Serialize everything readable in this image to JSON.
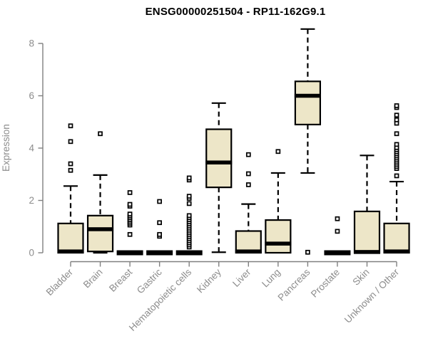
{
  "chart_data": {
    "type": "boxplot",
    "title": "ENSG00000251504 - RP11-162G9.1",
    "ylabel": "Expression",
    "xlabel": "",
    "yticks": [
      0,
      2,
      4,
      6,
      8
    ],
    "ylim": [
      0,
      8.6
    ],
    "grid": false,
    "legend": "none",
    "colors": {
      "box_fill": "#EDE6C8",
      "box_stroke": "#000000",
      "axis_line": "#808080",
      "tick_text": "#8C8C8C",
      "title_text": "#000000",
      "background": "#FFFFFF"
    },
    "categories": [
      "Bladder",
      "Brain",
      "Breast",
      "Gastric",
      "Hematopoietic cells",
      "Kidney",
      "Liver",
      "Lung",
      "Pancreas",
      "Prostate",
      "Skin",
      "Unknown / Other"
    ],
    "series": [
      {
        "category": "Bladder",
        "q1": 0,
        "median": 0.05,
        "q3": 1.12,
        "whisker_low": 0,
        "whisker_high": 2.55,
        "outliers": [
          3.15,
          3.4,
          4.25,
          4.85
        ]
      },
      {
        "category": "Brain",
        "q1": 0.05,
        "median": 0.9,
        "q3": 1.42,
        "whisker_low": 0,
        "whisker_high": 2.97,
        "outliers": [
          4.55
        ]
      },
      {
        "category": "Breast",
        "q1": 0,
        "median": 0,
        "q3": 0,
        "whisker_low": 0,
        "whisker_high": 0,
        "outliers": [
          0.7,
          1.06,
          1.13,
          1.2,
          1.27,
          1.34,
          1.41,
          1.48,
          1.78,
          1.85,
          2.3
        ]
      },
      {
        "category": "Gastric",
        "q1": 0,
        "median": 0,
        "q3": 0,
        "whisker_low": 0,
        "whisker_high": 0,
        "outliers": [
          0.63,
          0.7,
          1.15,
          1.96
        ]
      },
      {
        "category": "Hematopoietic cells",
        "q1": 0,
        "median": 0,
        "q3": 0,
        "whisker_low": 0,
        "whisker_high": 0,
        "outliers": [
          0.22,
          0.3,
          0.38,
          0.46,
          0.54,
          0.62,
          0.7,
          0.78,
          0.86,
          0.94,
          1.02,
          1.1,
          1.18,
          1.26,
          1.34,
          1.42,
          1.88,
          2.08,
          2.16,
          2.78,
          2.86
        ]
      },
      {
        "category": "Kidney",
        "q1": 2.5,
        "median": 3.45,
        "q3": 4.72,
        "whisker_low": 0.02,
        "whisker_high": 5.72,
        "outliers": []
      },
      {
        "category": "Liver",
        "q1": 0,
        "median": 0.05,
        "q3": 0.83,
        "whisker_low": 0,
        "whisker_high": 1.86,
        "outliers": [
          2.6,
          3.02,
          3.75
        ]
      },
      {
        "category": "Lung",
        "q1": 0,
        "median": 0.35,
        "q3": 1.25,
        "whisker_low": 0,
        "whisker_high": 3.05,
        "outliers": [
          3.87
        ]
      },
      {
        "category": "Pancreas",
        "q1": 4.9,
        "median": 6.0,
        "q3": 6.55,
        "whisker_low": 3.05,
        "whisker_high": 8.55,
        "outliers": [
          0.02
        ]
      },
      {
        "category": "Prostate",
        "q1": 0,
        "median": 0,
        "q3": 0,
        "whisker_low": 0,
        "whisker_high": 0,
        "outliers": [
          0.82,
          1.3
        ]
      },
      {
        "category": "Skin",
        "q1": 0,
        "median": 0.03,
        "q3": 1.58,
        "whisker_low": 0,
        "whisker_high": 3.72,
        "outliers": []
      },
      {
        "category": "Unknown / Other",
        "q1": 0,
        "median": 0.05,
        "q3": 1.12,
        "whisker_low": 0,
        "whisker_high": 2.72,
        "outliers": [
          2.94,
          3.22,
          3.3,
          3.38,
          3.46,
          3.54,
          3.62,
          3.7,
          3.78,
          3.86,
          3.94,
          4.02,
          4.14,
          4.55,
          4.95,
          5.08,
          5.26,
          5.55,
          5.62
        ]
      }
    ]
  }
}
